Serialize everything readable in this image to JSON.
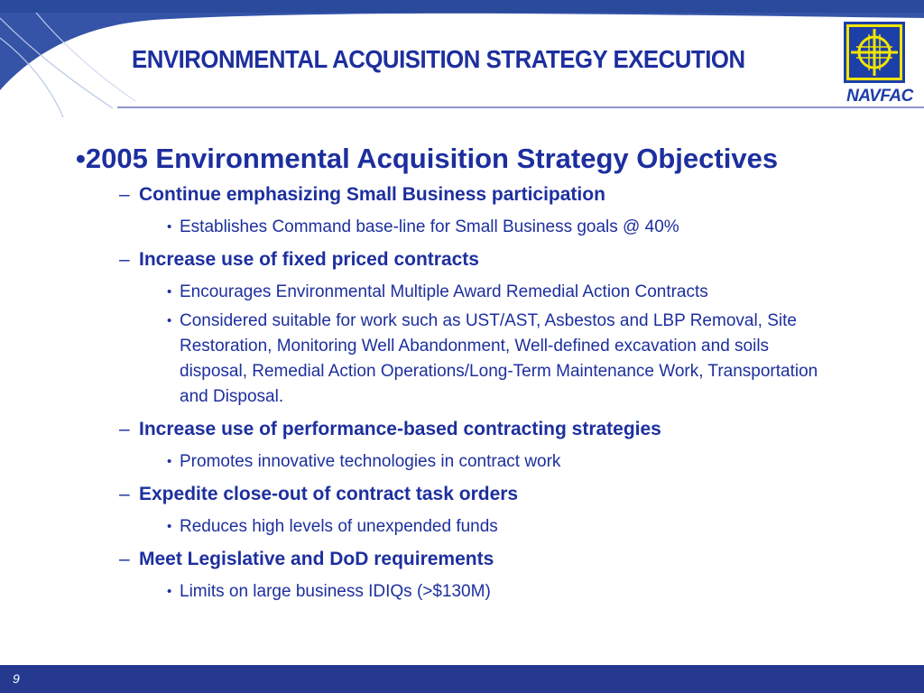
{
  "slide": {
    "title": "ENVIRONMENTAL ACQUISITION STRATEGY EXECUTION",
    "logo_text": "NAVFAC",
    "heading_bullet": "•",
    "heading": "2005 Environmental Acquisition Strategy Objectives",
    "dash": "–",
    "subbullet_glyph": "•",
    "sections": [
      {
        "label": "Continue emphasizing Small Business participation",
        "items": [
          "Establishes Command base-line for Small Business goals @ 40%"
        ]
      },
      {
        "label": "Increase use of fixed priced contracts",
        "items": [
          "Encourages Environmental Multiple Award Remedial Action Contracts",
          "Considered suitable for work such as UST/AST, Asbestos and LBP Removal, Site Restoration, Monitoring Well Abandonment, Well-defined excavation and soils disposal, Remedial Action Operations/Long-Term Maintenance Work, Transportation and Disposal."
        ]
      },
      {
        "label": "Increase use of performance-based contracting strategies",
        "items": [
          "Promotes innovative technologies in contract work"
        ]
      },
      {
        "label": "Expedite close-out of contract task orders",
        "items": [
          "Reduces high levels of unexpended funds"
        ]
      },
      {
        "label": "Meet Legislative and DoD requirements",
        "items": [
          "Limits on large business IDIQs (>$130M)"
        ]
      }
    ],
    "page_number": "9"
  },
  "colors": {
    "title_blue": "#1d2f9e",
    "band_blue": "#25398f",
    "logo_yellow": "#f2e600",
    "logo_blue": "#1d3fa8"
  }
}
